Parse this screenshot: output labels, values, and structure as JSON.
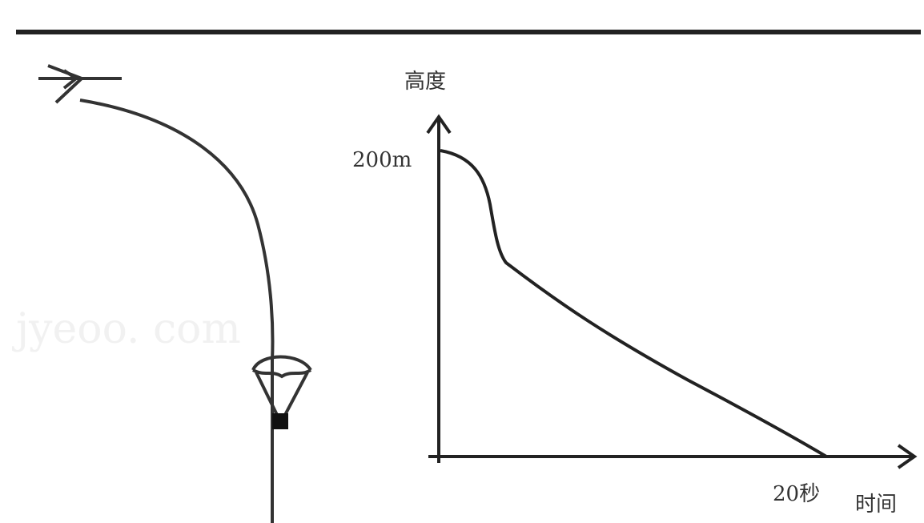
{
  "graph": {
    "y_axis_label": "高度",
    "y_max_label": "200m",
    "x_max_label": "20秒",
    "x_axis_label": "时间"
  },
  "watermark": "jyeoo. com"
}
